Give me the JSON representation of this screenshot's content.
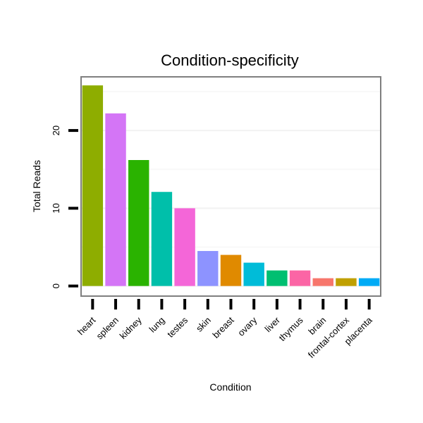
{
  "chart_data": {
    "type": "bar",
    "title": "Condition-specificity",
    "xlabel": "Condition",
    "ylabel": "Total Reads",
    "ylim": [
      -1.3,
      26.9
    ],
    "yticks": [
      0,
      10,
      20
    ],
    "ytick_labels": [
      "0",
      "10",
      "20"
    ],
    "grid": true,
    "categories": [
      "heart",
      "spleen",
      "kidney",
      "lung",
      "testes",
      "skin",
      "breast",
      "ovary",
      "liver",
      "thymus",
      "brain",
      "frontal-cortex",
      "placenta"
    ],
    "values": [
      25.8,
      22.2,
      16.2,
      12.1,
      10.0,
      4.5,
      4.0,
      3.0,
      2.0,
      2.0,
      1.0,
      1.0,
      1.0
    ],
    "colors": [
      "#8ead00",
      "#d475f6",
      "#2ab300",
      "#00bfaa",
      "#f466d8",
      "#8d93ff",
      "#e08a00",
      "#00bcd8",
      "#00bf71",
      "#fb65a5",
      "#f7766c",
      "#c0a000",
      "#00abf6"
    ]
  }
}
